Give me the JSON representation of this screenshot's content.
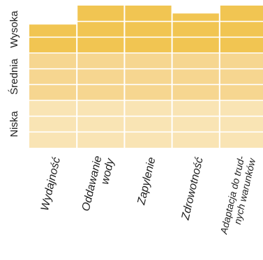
{
  "chart_data": {
    "type": "bar",
    "categories": [
      [
        "Wydajność"
      ],
      [
        "Oddawanie",
        "wody"
      ],
      [
        "Zapylenie"
      ],
      [
        "Zdrowotność"
      ],
      [
        "Adaptacja do trud-",
        "nych warunków"
      ]
    ],
    "values": [
      7.8,
      9.0,
      9.0,
      8.5,
      9.0
    ],
    "ylim": [
      0,
      9
    ],
    "y_tick_labels": [
      "Niska",
      "Średnia",
      "Wysoka"
    ],
    "band_colors": [
      "#f9e4b4",
      "#f6d690",
      "#f1c552"
    ],
    "grid": true,
    "legend": "none"
  }
}
